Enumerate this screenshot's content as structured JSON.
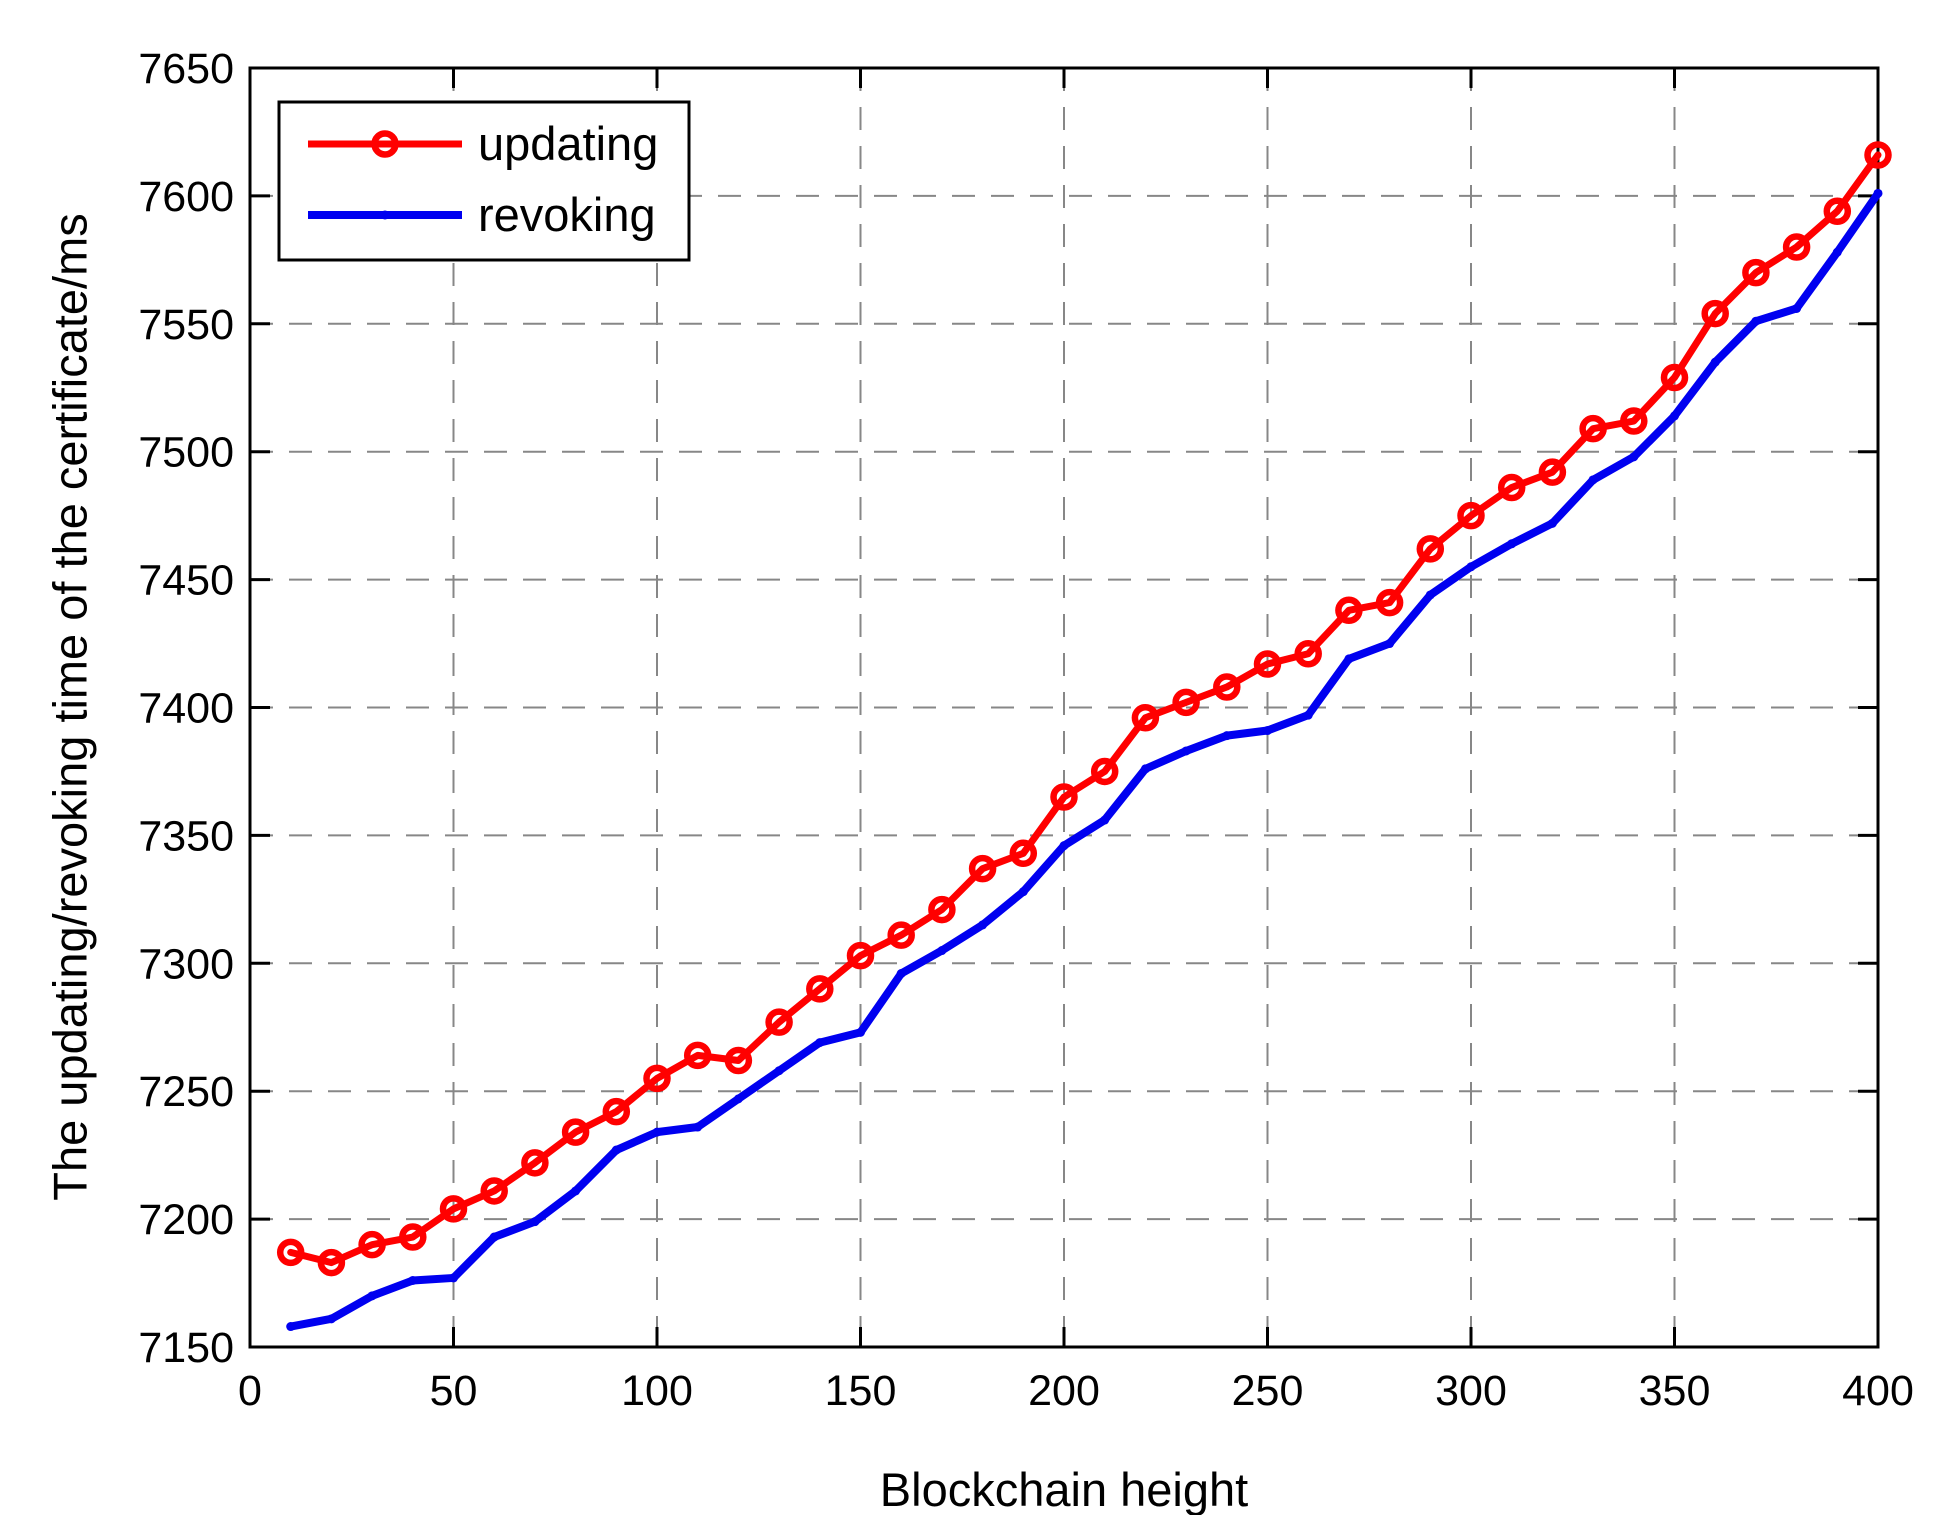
{
  "figure": {
    "background_color": "#ffffff",
    "border_color": "#000000",
    "grid_color": "#878787"
  },
  "chart_data": {
    "type": "line",
    "title": "",
    "xlabel": "Blockchain height",
    "ylabel": "The updating/revoking time of the certificate/ms",
    "xlim": [
      0,
      400
    ],
    "ylim": [
      7150,
      7650
    ],
    "xticks": [
      0,
      50,
      100,
      150,
      200,
      250,
      300,
      350,
      400
    ],
    "yticks": [
      7150,
      7200,
      7250,
      7300,
      7350,
      7400,
      7450,
      7500,
      7550,
      7600,
      7650
    ],
    "grid": "dashed",
    "legend_position": "top-left",
    "x": [
      10,
      20,
      30,
      40,
      50,
      60,
      70,
      80,
      90,
      100,
      110,
      120,
      130,
      140,
      150,
      160,
      170,
      180,
      190,
      200,
      210,
      220,
      230,
      240,
      250,
      260,
      270,
      280,
      290,
      300,
      310,
      320,
      330,
      340,
      350,
      360,
      370,
      380,
      390,
      400
    ],
    "series": [
      {
        "name": "updating",
        "color": "#ff0000",
        "marker": "circle",
        "values": [
          7187,
          7183,
          7190,
          7193,
          7204,
          7211,
          7222,
          7234,
          7242,
          7255,
          7264,
          7262,
          7277,
          7290,
          7303,
          7311,
          7321,
          7337,
          7343,
          7365,
          7375,
          7396,
          7402,
          7408,
          7417,
          7421,
          7438,
          7441,
          7462,
          7475,
          7486,
          7492,
          7509,
          7512,
          7529,
          7554,
          7570,
          7580,
          7594,
          7616
        ]
      },
      {
        "name": "revoking",
        "color": "#0000f0",
        "marker": "dot",
        "values": [
          7158,
          7161,
          7170,
          7176,
          7177,
          7193,
          7199,
          7211,
          7227,
          7234,
          7236,
          7247,
          7258,
          7269,
          7273,
          7296,
          7305,
          7315,
          7328,
          7346,
          7356,
          7376,
          7383,
          7389,
          7391,
          7397,
          7419,
          7425,
          7444,
          7455,
          7464,
          7472,
          7489,
          7498,
          7514,
          7535,
          7551,
          7556,
          7578,
          7601
        ]
      }
    ]
  }
}
